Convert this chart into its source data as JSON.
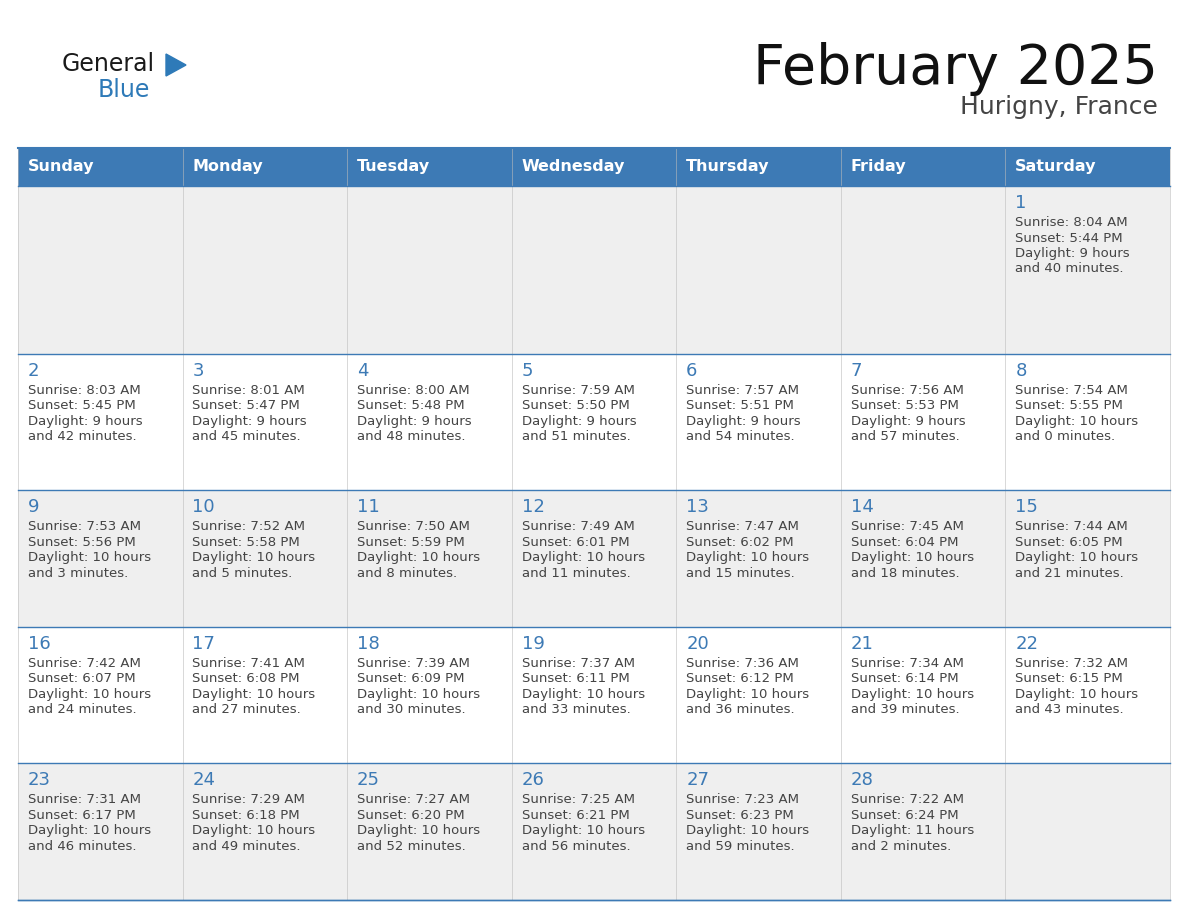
{
  "title": "February 2025",
  "subtitle": "Hurigny, France",
  "header_bg": "#3D7AB5",
  "header_text_color": "#FFFFFF",
  "cell_bg_light": "#EFEFEF",
  "cell_bg_white": "#FFFFFF",
  "border_color": "#3D7AB5",
  "text_color": "#444444",
  "day_num_color": "#3D7AB5",
  "days_of_week": [
    "Sunday",
    "Monday",
    "Tuesday",
    "Wednesday",
    "Thursday",
    "Friday",
    "Saturday"
  ],
  "logo_general_color": "#1A1A1A",
  "logo_blue_color": "#2E7AB8",
  "calendar_data": [
    [
      null,
      null,
      null,
      null,
      null,
      null,
      1
    ],
    [
      2,
      3,
      4,
      5,
      6,
      7,
      8
    ],
    [
      9,
      10,
      11,
      12,
      13,
      14,
      15
    ],
    [
      16,
      17,
      18,
      19,
      20,
      21,
      22
    ],
    [
      23,
      24,
      25,
      26,
      27,
      28,
      null
    ]
  ],
  "day_info": {
    "1": {
      "sunrise": "8:04 AM",
      "sunset": "5:44 PM",
      "daylight_line1": "Daylight: 9 hours",
      "daylight_line2": "and 40 minutes."
    },
    "2": {
      "sunrise": "8:03 AM",
      "sunset": "5:45 PM",
      "daylight_line1": "Daylight: 9 hours",
      "daylight_line2": "and 42 minutes."
    },
    "3": {
      "sunrise": "8:01 AM",
      "sunset": "5:47 PM",
      "daylight_line1": "Daylight: 9 hours",
      "daylight_line2": "and 45 minutes."
    },
    "4": {
      "sunrise": "8:00 AM",
      "sunset": "5:48 PM",
      "daylight_line1": "Daylight: 9 hours",
      "daylight_line2": "and 48 minutes."
    },
    "5": {
      "sunrise": "7:59 AM",
      "sunset": "5:50 PM",
      "daylight_line1": "Daylight: 9 hours",
      "daylight_line2": "and 51 minutes."
    },
    "6": {
      "sunrise": "7:57 AM",
      "sunset": "5:51 PM",
      "daylight_line1": "Daylight: 9 hours",
      "daylight_line2": "and 54 minutes."
    },
    "7": {
      "sunrise": "7:56 AM",
      "sunset": "5:53 PM",
      "daylight_line1": "Daylight: 9 hours",
      "daylight_line2": "and 57 minutes."
    },
    "8": {
      "sunrise": "7:54 AM",
      "sunset": "5:55 PM",
      "daylight_line1": "Daylight: 10 hours",
      "daylight_line2": "and 0 minutes."
    },
    "9": {
      "sunrise": "7:53 AM",
      "sunset": "5:56 PM",
      "daylight_line1": "Daylight: 10 hours",
      "daylight_line2": "and 3 minutes."
    },
    "10": {
      "sunrise": "7:52 AM",
      "sunset": "5:58 PM",
      "daylight_line1": "Daylight: 10 hours",
      "daylight_line2": "and 5 minutes."
    },
    "11": {
      "sunrise": "7:50 AM",
      "sunset": "5:59 PM",
      "daylight_line1": "Daylight: 10 hours",
      "daylight_line2": "and 8 minutes."
    },
    "12": {
      "sunrise": "7:49 AM",
      "sunset": "6:01 PM",
      "daylight_line1": "Daylight: 10 hours",
      "daylight_line2": "and 11 minutes."
    },
    "13": {
      "sunrise": "7:47 AM",
      "sunset": "6:02 PM",
      "daylight_line1": "Daylight: 10 hours",
      "daylight_line2": "and 15 minutes."
    },
    "14": {
      "sunrise": "7:45 AM",
      "sunset": "6:04 PM",
      "daylight_line1": "Daylight: 10 hours",
      "daylight_line2": "and 18 minutes."
    },
    "15": {
      "sunrise": "7:44 AM",
      "sunset": "6:05 PM",
      "daylight_line1": "Daylight: 10 hours",
      "daylight_line2": "and 21 minutes."
    },
    "16": {
      "sunrise": "7:42 AM",
      "sunset": "6:07 PM",
      "daylight_line1": "Daylight: 10 hours",
      "daylight_line2": "and 24 minutes."
    },
    "17": {
      "sunrise": "7:41 AM",
      "sunset": "6:08 PM",
      "daylight_line1": "Daylight: 10 hours",
      "daylight_line2": "and 27 minutes."
    },
    "18": {
      "sunrise": "7:39 AM",
      "sunset": "6:09 PM",
      "daylight_line1": "Daylight: 10 hours",
      "daylight_line2": "and 30 minutes."
    },
    "19": {
      "sunrise": "7:37 AM",
      "sunset": "6:11 PM",
      "daylight_line1": "Daylight: 10 hours",
      "daylight_line2": "and 33 minutes."
    },
    "20": {
      "sunrise": "7:36 AM",
      "sunset": "6:12 PM",
      "daylight_line1": "Daylight: 10 hours",
      "daylight_line2": "and 36 minutes."
    },
    "21": {
      "sunrise": "7:34 AM",
      "sunset": "6:14 PM",
      "daylight_line1": "Daylight: 10 hours",
      "daylight_line2": "and 39 minutes."
    },
    "22": {
      "sunrise": "7:32 AM",
      "sunset": "6:15 PM",
      "daylight_line1": "Daylight: 10 hours",
      "daylight_line2": "and 43 minutes."
    },
    "23": {
      "sunrise": "7:31 AM",
      "sunset": "6:17 PM",
      "daylight_line1": "Daylight: 10 hours",
      "daylight_line2": "and 46 minutes."
    },
    "24": {
      "sunrise": "7:29 AM",
      "sunset": "6:18 PM",
      "daylight_line1": "Daylight: 10 hours",
      "daylight_line2": "and 49 minutes."
    },
    "25": {
      "sunrise": "7:27 AM",
      "sunset": "6:20 PM",
      "daylight_line1": "Daylight: 10 hours",
      "daylight_line2": "and 52 minutes."
    },
    "26": {
      "sunrise": "7:25 AM",
      "sunset": "6:21 PM",
      "daylight_line1": "Daylight: 10 hours",
      "daylight_line2": "and 56 minutes."
    },
    "27": {
      "sunrise": "7:23 AM",
      "sunset": "6:23 PM",
      "daylight_line1": "Daylight: 10 hours",
      "daylight_line2": "and 59 minutes."
    },
    "28": {
      "sunrise": "7:22 AM",
      "sunset": "6:24 PM",
      "daylight_line1": "Daylight: 11 hours",
      "daylight_line2": "and 2 minutes."
    }
  }
}
